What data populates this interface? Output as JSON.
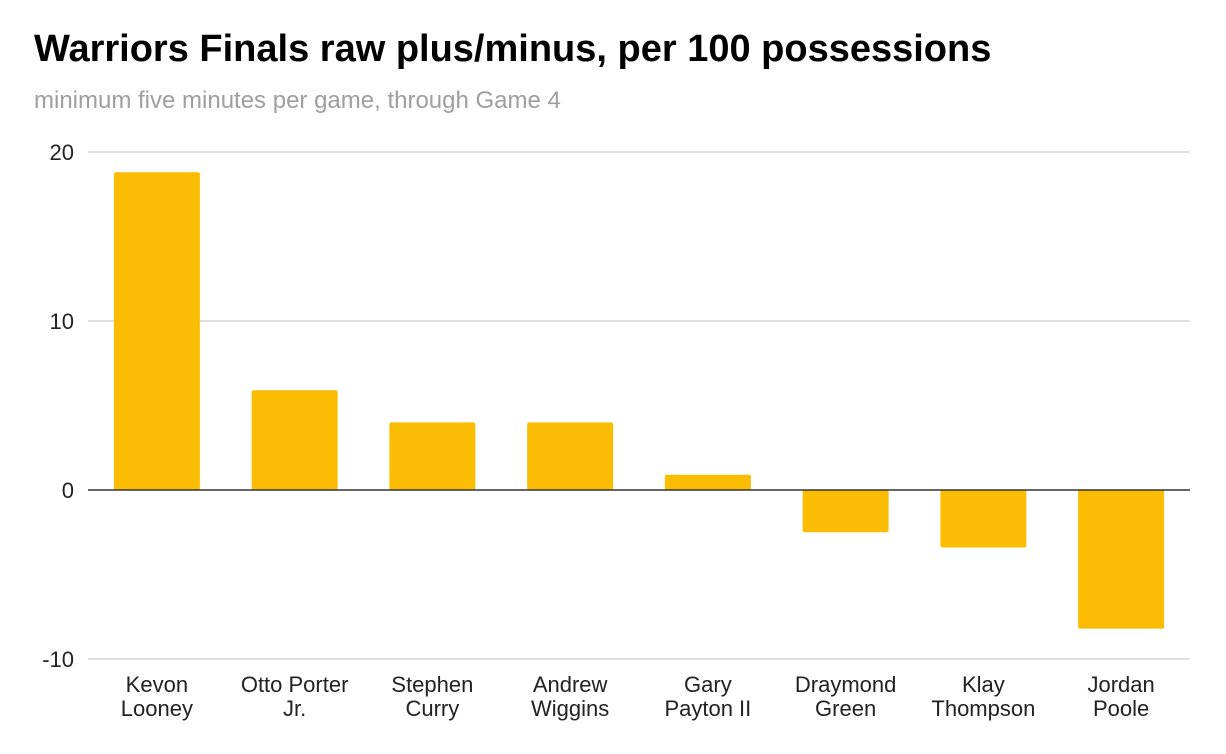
{
  "chart_data": {
    "type": "bar",
    "title": "Warriors Finals raw plus/minus, per 100 possessions",
    "subtitle": "minimum five minutes per game, through Game 4",
    "xlabel": "",
    "ylabel": "",
    "categories": [
      "Kevon Looney",
      "Otto Porter Jr.",
      "Stephen Curry",
      "Andrew Wiggins",
      "Gary Payton II",
      "Draymond Green",
      "Klay Thompson",
      "Jordan Poole"
    ],
    "category_lines": [
      [
        "Kevon",
        "Looney"
      ],
      [
        "Otto Porter",
        "Jr."
      ],
      [
        "Stephen",
        "Curry"
      ],
      [
        "Andrew",
        "Wiggins"
      ],
      [
        "Gary",
        "Payton II"
      ],
      [
        "Draymond",
        "Green"
      ],
      [
        "Klay",
        "Thompson"
      ],
      [
        "Jordan",
        "Poole"
      ]
    ],
    "values": [
      18.8,
      5.9,
      4.0,
      4.0,
      0.9,
      -2.5,
      -3.4,
      -8.2
    ],
    "ylim": [
      -10,
      20
    ],
    "yticks": [
      20,
      10,
      0,
      -10
    ],
    "grid": true,
    "legend": "none",
    "colors": {
      "bar": "#FBBC04",
      "grid": "#cccccc",
      "zero": "#333333"
    }
  }
}
